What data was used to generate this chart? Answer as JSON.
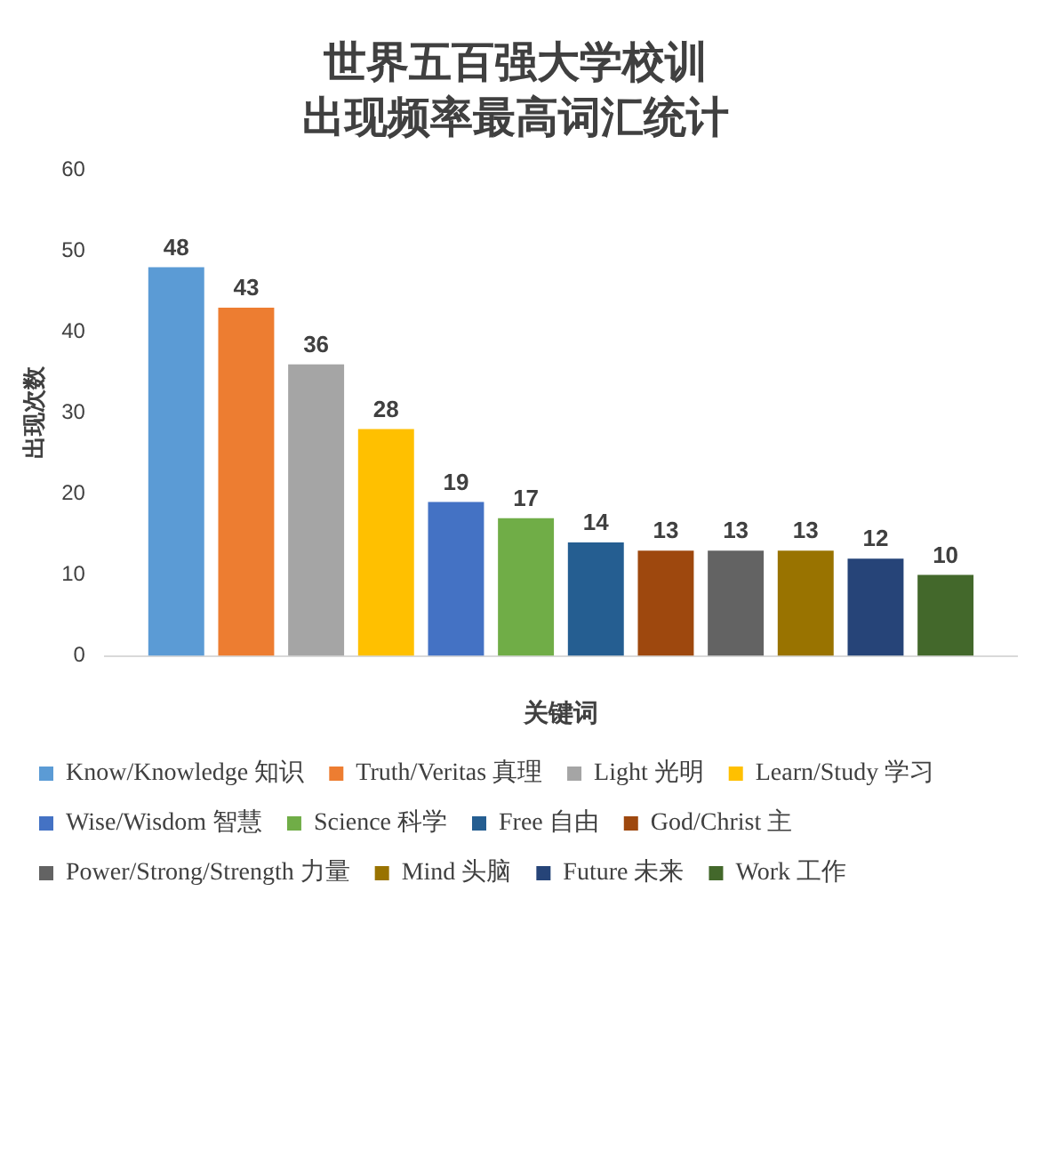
{
  "chart_data": {
    "type": "bar",
    "title": "世界五百强大学校训",
    "subtitle": "出现频率最高词汇统计",
    "xlabel": "关键词",
    "ylabel": "出现次数",
    "categories": [
      null
    ],
    "ylim": [
      0,
      60
    ],
    "yticks": [
      0,
      10,
      20,
      30,
      40,
      50,
      60
    ],
    "grid": false,
    "legend": "bottom",
    "data_labels": true,
    "series": [
      {
        "name": "Know/Knowledge 知识",
        "color": "#5b9bd5",
        "values": [
          48
        ]
      },
      {
        "name": "Truth/Veritas 真理",
        "color": "#ed7d31",
        "values": [
          43
        ]
      },
      {
        "name": "Light 光明",
        "color": "#a5a5a5",
        "values": [
          36
        ]
      },
      {
        "name": "Learn/Study 学习",
        "color": "#ffc000",
        "values": [
          28
        ]
      },
      {
        "name": "Wise/Wisdom 智慧",
        "color": "#4472c4",
        "values": [
          19
        ]
      },
      {
        "name": "Science 科学",
        "color": "#70ad47",
        "values": [
          17
        ]
      },
      {
        "name": "Free 自由",
        "color": "#255e91",
        "values": [
          14
        ]
      },
      {
        "name": "God/Christ 主",
        "color": "#9e480e",
        "values": [
          13
        ]
      },
      {
        "name": "Power/Strong/Strength 力量",
        "color": "#636363",
        "values": [
          13
        ]
      },
      {
        "name": "Mind 头脑",
        "color": "#997300",
        "values": [
          13
        ]
      },
      {
        "name": "Future 未来",
        "color": "#264478",
        "values": [
          12
        ]
      },
      {
        "name": "Work 工作",
        "color": "#43682b",
        "values": [
          10
        ]
      }
    ]
  }
}
